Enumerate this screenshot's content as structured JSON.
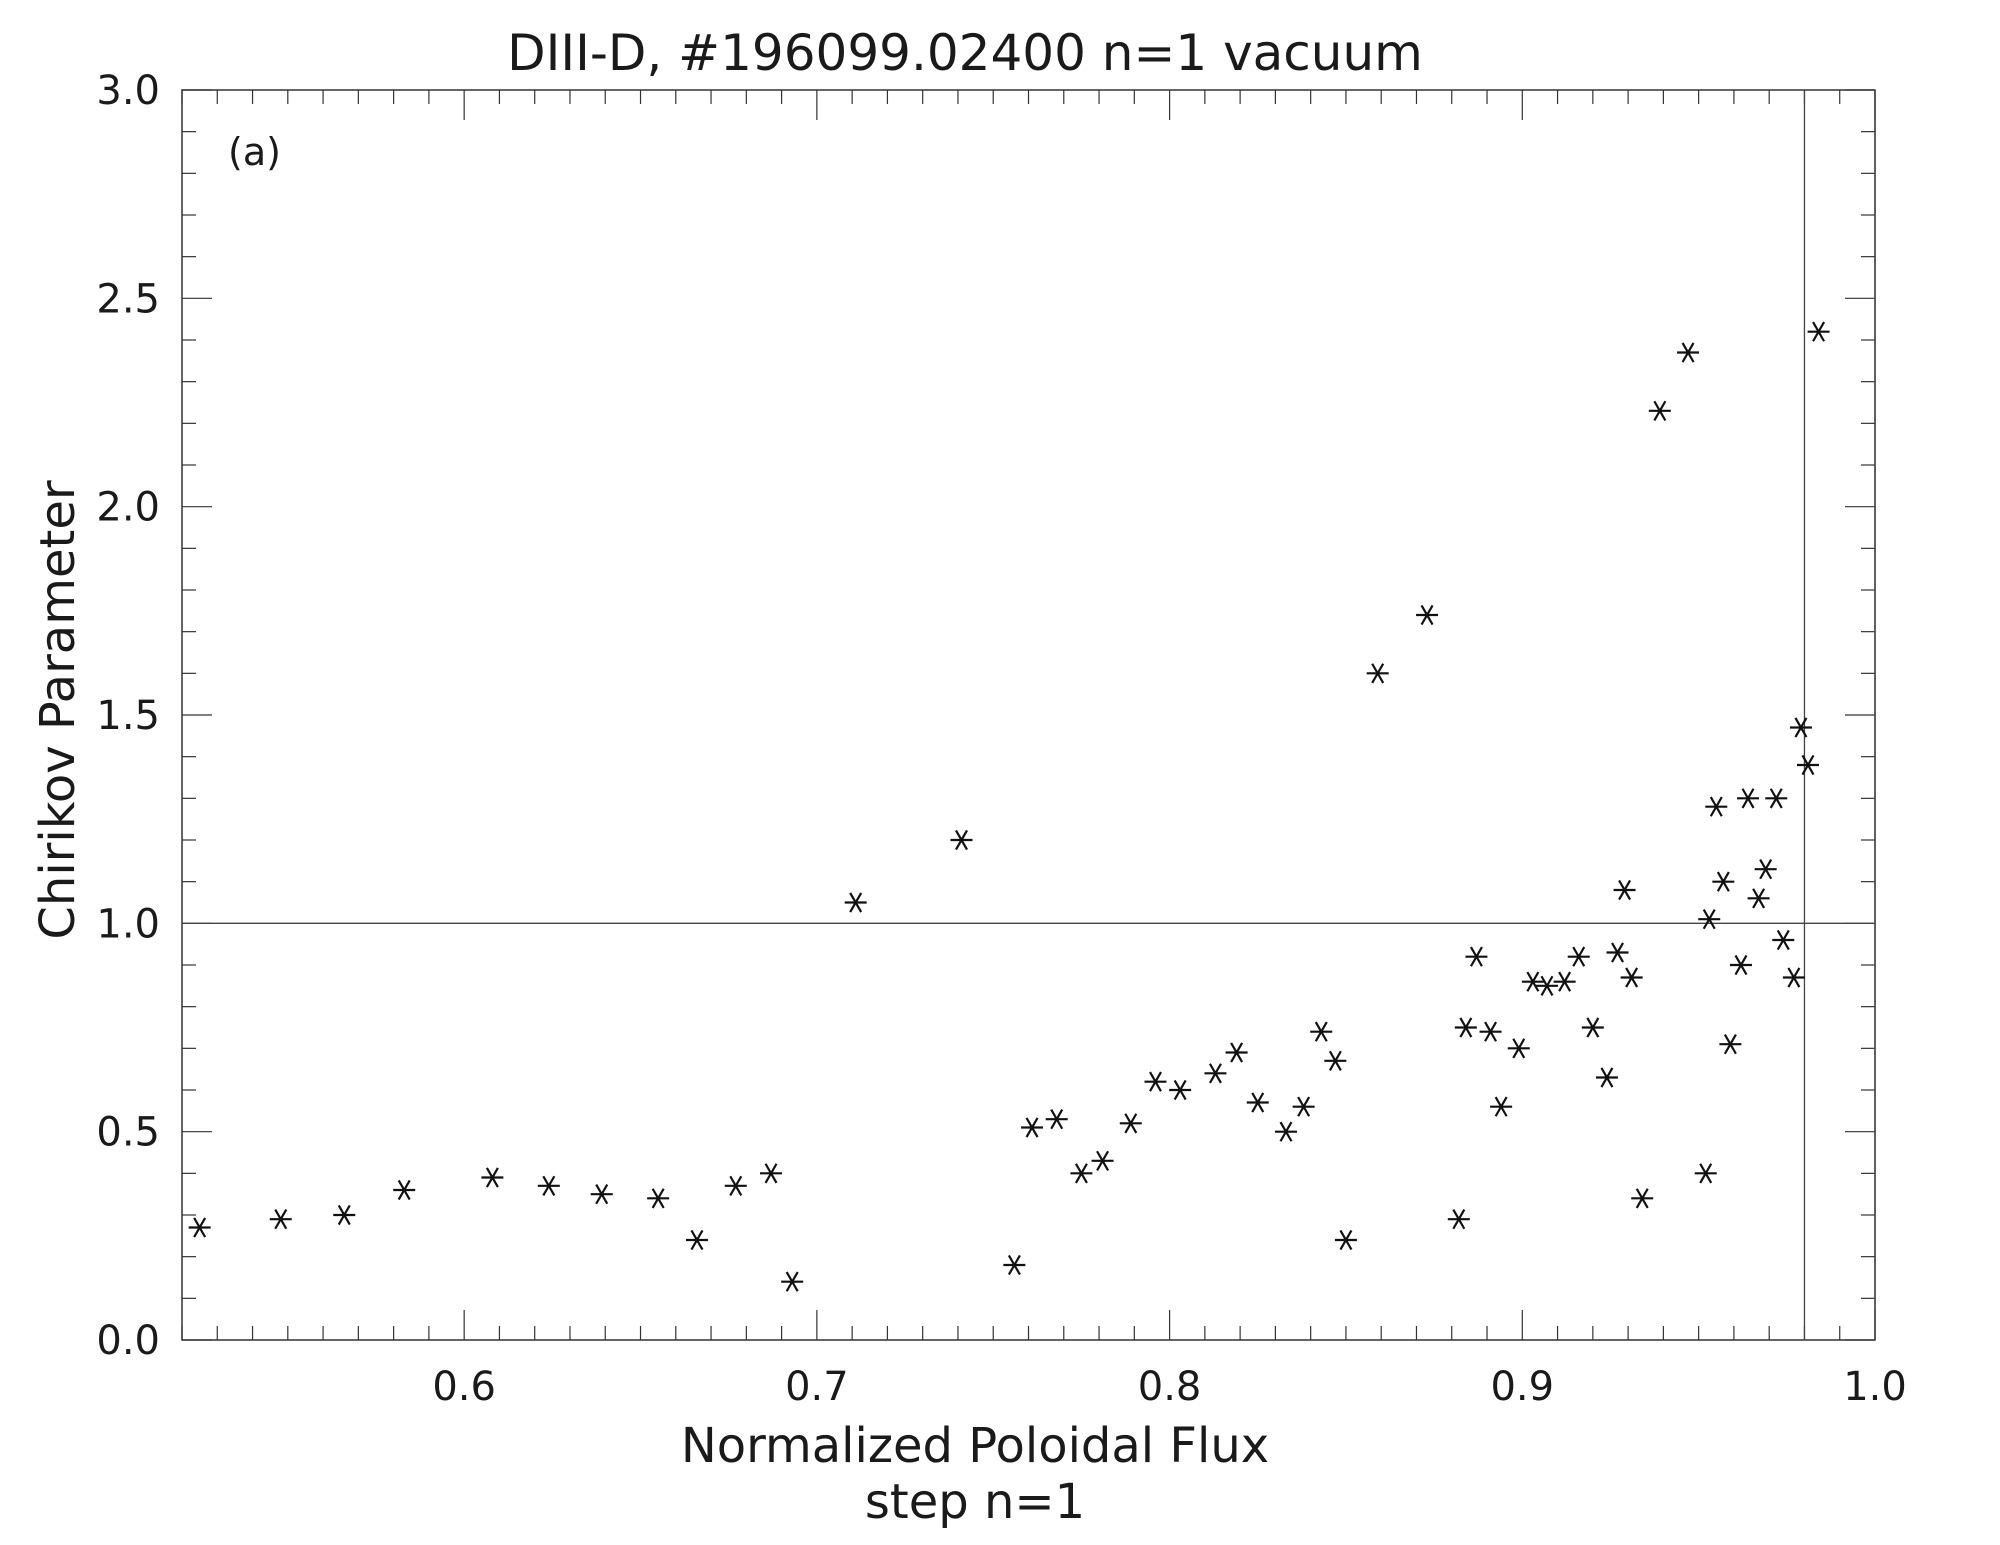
{
  "chart_data": {
    "type": "scatter",
    "title": "DIII-D, #196099.02400 n=1 vacuum",
    "xlabel": "Normalized Poloidal Flux",
    "xlabel2": "step n=1",
    "ylabel": "Chirikov Parameter",
    "panel_label": "(a)",
    "xlim": [
      0.52,
      1.0
    ],
    "ylim": [
      0.0,
      3.0
    ],
    "x_ticks": [
      "0.6",
      "0.7",
      "0.8",
      "0.9",
      "1.0"
    ],
    "y_ticks": [
      "0.0",
      "0.5",
      "1.0",
      "1.5",
      "2.0",
      "2.5",
      "3.0"
    ],
    "reference_lines": {
      "horizontal_y": 1.0,
      "vertical_x": [
        0.98,
        1.0
      ]
    },
    "marker": "asterisk",
    "grid": false,
    "x": [
      0.525,
      0.548,
      0.566,
      0.583,
      0.608,
      0.624,
      0.639,
      0.655,
      0.666,
      0.677,
      0.687,
      0.693,
      0.711,
      0.741,
      0.756,
      0.761,
      0.768,
      0.775,
      0.781,
      0.789,
      0.796,
      0.803,
      0.813,
      0.819,
      0.825,
      0.833,
      0.838,
      0.843,
      0.847,
      0.85,
      0.859,
      0.873,
      0.882,
      0.884,
      0.887,
      0.891,
      0.894,
      0.899,
      0.903,
      0.907,
      0.912,
      0.916,
      0.92,
      0.924,
      0.927,
      0.929,
      0.931,
      0.934,
      0.939,
      0.947,
      0.952,
      0.953,
      0.955,
      0.957,
      0.959,
      0.962,
      0.964,
      0.967,
      0.969,
      0.972,
      0.974,
      0.977,
      0.979,
      0.981,
      0.984
    ],
    "y": [
      0.27,
      0.29,
      0.3,
      0.36,
      0.39,
      0.37,
      0.35,
      0.34,
      0.24,
      0.37,
      0.4,
      0.14,
      1.05,
      1.2,
      0.18,
      0.51,
      0.53,
      0.4,
      0.43,
      0.52,
      0.62,
      0.6,
      0.64,
      0.69,
      0.57,
      0.5,
      0.56,
      0.74,
      0.67,
      0.24,
      1.6,
      1.74,
      0.29,
      0.75,
      0.92,
      0.74,
      0.56,
      0.7,
      0.86,
      0.85,
      0.86,
      0.92,
      0.75,
      0.63,
      0.93,
      1.08,
      0.87,
      0.34,
      2.23,
      2.37,
      0.4,
      1.01,
      1.28,
      1.1,
      0.71,
      0.9,
      1.3,
      1.06,
      1.13,
      1.3,
      0.96,
      0.87,
      1.47,
      1.38,
      2.42
    ]
  }
}
